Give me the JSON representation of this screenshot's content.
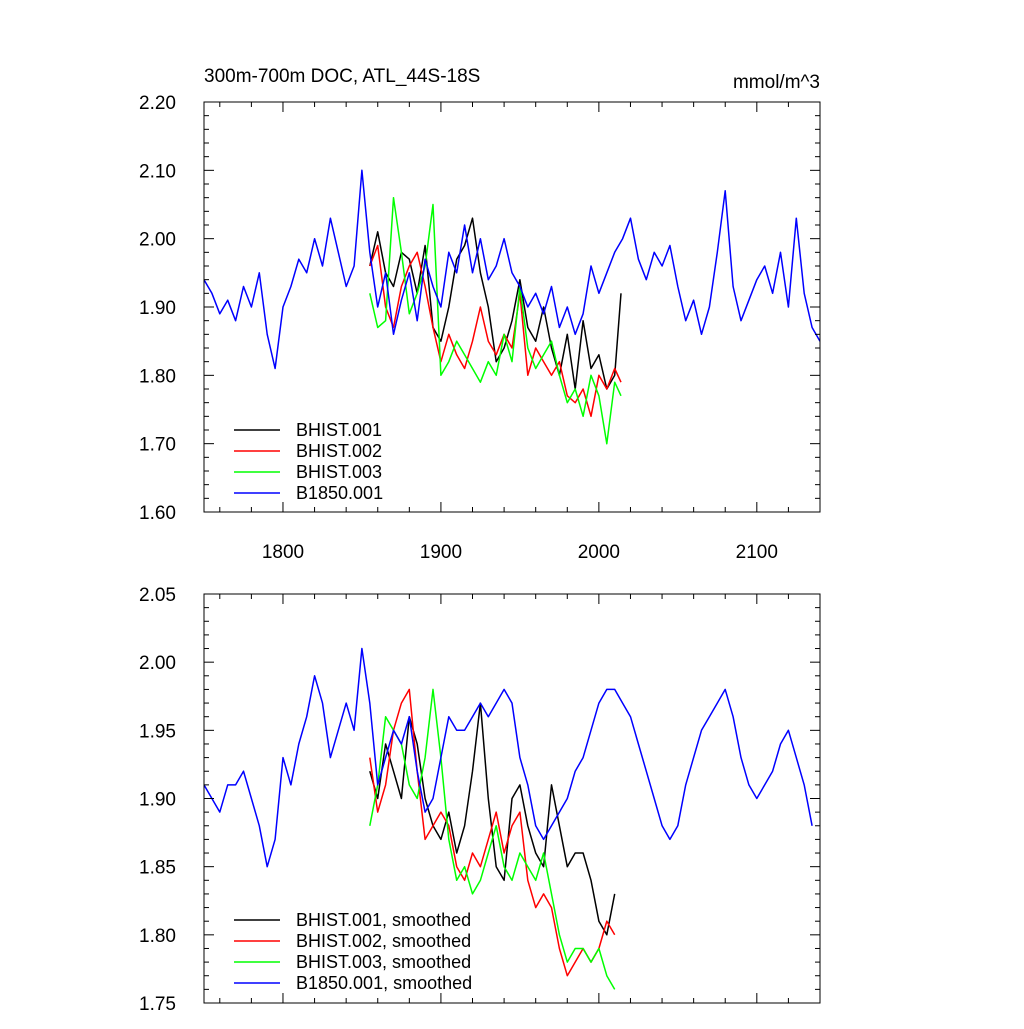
{
  "chart_data": [
    {
      "type": "line",
      "title": "300m-700m DOC, ATL_44S-18S",
      "units_label": "mmol/m^3",
      "xlim": [
        1750,
        2140
      ],
      "ylim": [
        1.6,
        2.2
      ],
      "x_ticks": [
        1800,
        1900,
        2000,
        2100
      ],
      "x_tick_labels": [
        "1800",
        "1900",
        "2000",
        "2100"
      ],
      "y_ticks": [
        1.6,
        1.7,
        1.8,
        1.9,
        2.0,
        2.1,
        2.2
      ],
      "y_tick_labels": [
        "1.60",
        "1.70",
        "1.80",
        "1.90",
        "2.00",
        "2.10",
        "2.20"
      ],
      "legend_position": "bottom-left",
      "series": [
        {
          "name": "BHIST.001",
          "color": "#000000",
          "x": [
            1855,
            1860,
            1865,
            1870,
            1875,
            1880,
            1885,
            1890,
            1895,
            1900,
            1905,
            1910,
            1915,
            1920,
            1925,
            1930,
            1935,
            1940,
            1945,
            1950,
            1955,
            1960,
            1965,
            1970,
            1975,
            1980,
            1985,
            1990,
            1995,
            2000,
            2005,
            2010,
            2014
          ],
          "y": [
            1.96,
            2.01,
            1.95,
            1.93,
            1.98,
            1.97,
            1.92,
            1.99,
            1.87,
            1.85,
            1.9,
            1.97,
            1.99,
            2.03,
            1.95,
            1.9,
            1.82,
            1.84,
            1.88,
            1.94,
            1.87,
            1.85,
            1.9,
            1.84,
            1.8,
            1.86,
            1.78,
            1.88,
            1.81,
            1.83,
            1.78,
            1.8,
            1.92
          ]
        },
        {
          "name": "BHIST.002",
          "color": "#ff0000",
          "x": [
            1855,
            1860,
            1865,
            1870,
            1875,
            1880,
            1885,
            1890,
            1895,
            1900,
            1905,
            1910,
            1915,
            1920,
            1925,
            1930,
            1935,
            1940,
            1945,
            1950,
            1955,
            1960,
            1965,
            1970,
            1975,
            1980,
            1985,
            1990,
            1995,
            2000,
            2005,
            2010,
            2014
          ],
          "y": [
            1.96,
            1.99,
            1.9,
            1.87,
            1.93,
            1.96,
            1.98,
            1.93,
            1.87,
            1.82,
            1.86,
            1.83,
            1.81,
            1.85,
            1.9,
            1.85,
            1.83,
            1.86,
            1.84,
            1.92,
            1.8,
            1.84,
            1.82,
            1.8,
            1.82,
            1.77,
            1.76,
            1.78,
            1.74,
            1.8,
            1.78,
            1.81,
            1.79
          ]
        },
        {
          "name": "BHIST.003",
          "color": "#00ff00",
          "x": [
            1855,
            1860,
            1865,
            1870,
            1875,
            1880,
            1885,
            1890,
            1895,
            1900,
            1905,
            1910,
            1915,
            1920,
            1925,
            1930,
            1935,
            1940,
            1945,
            1950,
            1955,
            1960,
            1965,
            1970,
            1975,
            1980,
            1985,
            1990,
            1995,
            2000,
            2005,
            2010,
            2014
          ],
          "y": [
            1.92,
            1.87,
            1.88,
            2.06,
            1.98,
            1.89,
            1.92,
            1.96,
            2.05,
            1.8,
            1.82,
            1.85,
            1.83,
            1.81,
            1.79,
            1.82,
            1.8,
            1.86,
            1.82,
            1.93,
            1.84,
            1.81,
            1.83,
            1.85,
            1.8,
            1.76,
            1.78,
            1.74,
            1.8,
            1.77,
            1.7,
            1.79,
            1.77
          ]
        },
        {
          "name": "B1850.001",
          "color": "#0000ff",
          "x": [
            1750,
            1755,
            1760,
            1765,
            1770,
            1775,
            1780,
            1785,
            1790,
            1795,
            1800,
            1805,
            1810,
            1815,
            1820,
            1825,
            1830,
            1835,
            1840,
            1845,
            1850,
            1855,
            1860,
            1865,
            1870,
            1875,
            1880,
            1885,
            1890,
            1895,
            1900,
            1905,
            1910,
            1915,
            1920,
            1925,
            1930,
            1935,
            1940,
            1945,
            1950,
            1955,
            1960,
            1965,
            1970,
            1975,
            1980,
            1985,
            1990,
            1995,
            2000,
            2005,
            2010,
            2015,
            2020,
            2025,
            2030,
            2035,
            2040,
            2045,
            2050,
            2055,
            2060,
            2065,
            2070,
            2075,
            2080,
            2085,
            2090,
            2095,
            2100,
            2105,
            2110,
            2115,
            2120,
            2125,
            2130,
            2135,
            2140
          ],
          "y": [
            1.94,
            1.92,
            1.89,
            1.91,
            1.88,
            1.93,
            1.9,
            1.95,
            1.86,
            1.81,
            1.9,
            1.93,
            1.97,
            1.95,
            2.0,
            1.96,
            2.03,
            1.98,
            1.93,
            1.96,
            2.1,
            1.98,
            1.9,
            1.95,
            1.86,
            1.91,
            1.95,
            1.88,
            1.97,
            1.93,
            1.9,
            1.98,
            1.95,
            2.02,
            1.95,
            2.0,
            1.94,
            1.96,
            2.0,
            1.95,
            1.93,
            1.9,
            1.92,
            1.89,
            1.93,
            1.87,
            1.9,
            1.86,
            1.89,
            1.96,
            1.92,
            1.95,
            1.98,
            2.0,
            2.03,
            1.97,
            1.94,
            1.98,
            1.96,
            1.99,
            1.93,
            1.88,
            1.91,
            1.86,
            1.9,
            1.98,
            2.07,
            1.93,
            1.88,
            1.91,
            1.94,
            1.96,
            1.92,
            1.98,
            1.9,
            2.03,
            1.92,
            1.87,
            1.85
          ]
        }
      ]
    },
    {
      "type": "line",
      "title": "",
      "xlim": [
        1750,
        2140
      ],
      "ylim": [
        1.75,
        2.05
      ],
      "x_ticks": [
        1800,
        1900,
        2000,
        2100
      ],
      "y_ticks": [
        1.75,
        1.8,
        1.85,
        1.9,
        1.95,
        2.0,
        2.05
      ],
      "y_tick_labels": [
        "1.75",
        "1.80",
        "1.85",
        "1.90",
        "1.95",
        "2.00",
        "2.05"
      ],
      "legend_position": "bottom-left",
      "series": [
        {
          "name": "BHIST.001, smoothed",
          "color": "#000000",
          "x": [
            1855,
            1860,
            1865,
            1870,
            1875,
            1880,
            1885,
            1890,
            1895,
            1900,
            1905,
            1910,
            1915,
            1920,
            1925,
            1930,
            1935,
            1940,
            1945,
            1950,
            1955,
            1960,
            1965,
            1970,
            1975,
            1980,
            1985,
            1990,
            1995,
            2000,
            2005,
            2010
          ],
          "y": [
            1.92,
            1.9,
            1.94,
            1.92,
            1.9,
            1.96,
            1.94,
            1.9,
            1.88,
            1.87,
            1.89,
            1.86,
            1.88,
            1.92,
            1.97,
            1.9,
            1.85,
            1.84,
            1.9,
            1.91,
            1.88,
            1.86,
            1.85,
            1.91,
            1.88,
            1.85,
            1.86,
            1.86,
            1.84,
            1.81,
            1.8,
            1.83
          ]
        },
        {
          "name": "BHIST.002, smoothed",
          "color": "#ff0000",
          "x": [
            1855,
            1860,
            1865,
            1870,
            1875,
            1880,
            1885,
            1890,
            1895,
            1900,
            1905,
            1910,
            1915,
            1920,
            1925,
            1930,
            1935,
            1940,
            1945,
            1950,
            1955,
            1960,
            1965,
            1970,
            1975,
            1980,
            1985,
            1990,
            1995,
            2000,
            2005,
            2010
          ],
          "y": [
            1.93,
            1.89,
            1.91,
            1.95,
            1.97,
            1.98,
            1.92,
            1.87,
            1.88,
            1.89,
            1.88,
            1.85,
            1.84,
            1.86,
            1.85,
            1.87,
            1.89,
            1.86,
            1.88,
            1.89,
            1.84,
            1.82,
            1.83,
            1.82,
            1.79,
            1.77,
            1.78,
            1.79,
            1.78,
            1.79,
            1.81,
            1.8
          ]
        },
        {
          "name": "BHIST.003, smoothed",
          "color": "#00ff00",
          "x": [
            1855,
            1860,
            1865,
            1870,
            1875,
            1880,
            1885,
            1890,
            1895,
            1900,
            1905,
            1910,
            1915,
            1920,
            1925,
            1930,
            1935,
            1940,
            1945,
            1950,
            1955,
            1960,
            1965,
            1970,
            1975,
            1980,
            1985,
            1990,
            1995,
            2000,
            2005,
            2010
          ],
          "y": [
            1.88,
            1.91,
            1.96,
            1.95,
            1.94,
            1.91,
            1.9,
            1.93,
            1.98,
            1.93,
            1.87,
            1.84,
            1.85,
            1.83,
            1.84,
            1.86,
            1.88,
            1.85,
            1.84,
            1.86,
            1.85,
            1.84,
            1.86,
            1.83,
            1.8,
            1.78,
            1.79,
            1.79,
            1.78,
            1.79,
            1.77,
            1.76
          ]
        },
        {
          "name": "B1850.001, smoothed",
          "color": "#0000ff",
          "x": [
            1750,
            1755,
            1760,
            1765,
            1770,
            1775,
            1780,
            1785,
            1790,
            1795,
            1800,
            1805,
            1810,
            1815,
            1820,
            1825,
            1830,
            1835,
            1840,
            1845,
            1850,
            1855,
            1860,
            1865,
            1870,
            1875,
            1880,
            1885,
            1890,
            1895,
            1900,
            1905,
            1910,
            1915,
            1920,
            1925,
            1930,
            1935,
            1940,
            1945,
            1950,
            1955,
            1960,
            1965,
            1970,
            1975,
            1980,
            1985,
            1990,
            1995,
            2000,
            2005,
            2010,
            2015,
            2020,
            2025,
            2030,
            2035,
            2040,
            2045,
            2050,
            2055,
            2060,
            2065,
            2070,
            2075,
            2080,
            2085,
            2090,
            2095,
            2100,
            2105,
            2110,
            2115,
            2120,
            2125,
            2130,
            2135
          ],
          "y": [
            1.91,
            1.9,
            1.89,
            1.91,
            1.91,
            1.92,
            1.9,
            1.88,
            1.85,
            1.87,
            1.93,
            1.91,
            1.94,
            1.96,
            1.99,
            1.97,
            1.93,
            1.95,
            1.97,
            1.95,
            2.01,
            1.97,
            1.91,
            1.93,
            1.95,
            1.94,
            1.96,
            1.92,
            1.89,
            1.9,
            1.93,
            1.96,
            1.95,
            1.95,
            1.96,
            1.97,
            1.96,
            1.97,
            1.98,
            1.97,
            1.93,
            1.91,
            1.88,
            1.87,
            1.88,
            1.89,
            1.9,
            1.92,
            1.93,
            1.95,
            1.97,
            1.98,
            1.98,
            1.97,
            1.96,
            1.94,
            1.92,
            1.9,
            1.88,
            1.87,
            1.88,
            1.91,
            1.93,
            1.95,
            1.96,
            1.97,
            1.98,
            1.96,
            1.93,
            1.91,
            1.9,
            1.91,
            1.92,
            1.94,
            1.95,
            1.93,
            1.91,
            1.88
          ]
        }
      ]
    }
  ]
}
